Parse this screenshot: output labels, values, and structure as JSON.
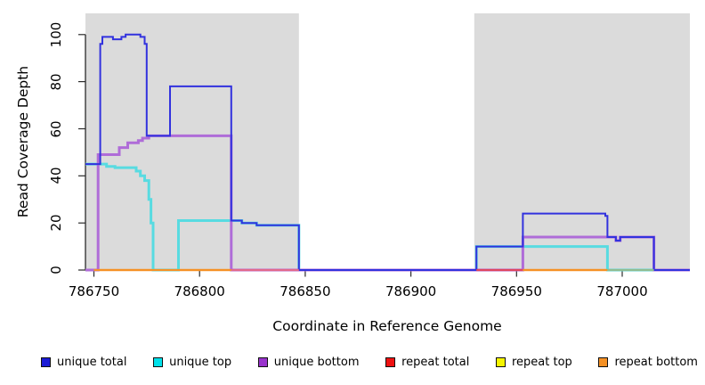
{
  "chart_data": {
    "type": "line",
    "title": "",
    "xlabel": "Coordinate in Reference Genome",
    "ylabel": "Read Coverage Depth",
    "xlim": [
      786746,
      787032
    ],
    "ylim": [
      0,
      109
    ],
    "x_ticks": [
      786750,
      786800,
      786850,
      786900,
      786950,
      787000
    ],
    "y_ticks": [
      0,
      20,
      40,
      60,
      80,
      100
    ],
    "grid": false,
    "legend_position": "bottom",
    "panel_bg": "#ffffff",
    "shaded_regions": [
      {
        "from": 786746,
        "to": 786847,
        "color": "#dbdbdb"
      },
      {
        "from": 786930,
        "to": 787032,
        "color": "#dbdbdb"
      }
    ],
    "series": [
      {
        "name": "repeat total",
        "color": "#e0455f",
        "width": 2,
        "steps": [
          [
            786750,
            0
          ]
        ]
      },
      {
        "name": "repeat top",
        "color": "#eded2e",
        "width": 2,
        "steps": [
          [
            786750,
            0
          ]
        ]
      },
      {
        "name": "repeat bottom",
        "color": "#f59125",
        "width": 2.2,
        "steps": [
          [
            786750,
            0
          ]
        ]
      },
      {
        "name": "unique top",
        "color": "#58dbe1",
        "width": 3,
        "steps": [
          [
            786746,
            45
          ],
          [
            786756,
            44
          ],
          [
            786760,
            43.5
          ],
          [
            786770,
            42
          ],
          [
            786772,
            40
          ],
          [
            786774,
            38
          ],
          [
            786776,
            30
          ],
          [
            786777,
            20
          ],
          [
            786778,
            0
          ],
          [
            786790,
            21
          ],
          [
            786820,
            20
          ],
          [
            786827,
            19
          ],
          [
            786847,
            0
          ],
          [
            786931,
            10
          ],
          [
            786993,
            0
          ]
        ]
      },
      {
        "name": "unique bottom",
        "color": "#af6cd8",
        "width": 3,
        "steps": [
          [
            786746,
            0
          ],
          [
            786752,
            49
          ],
          [
            786762,
            52
          ],
          [
            786766,
            54
          ],
          [
            786771,
            55
          ],
          [
            786773,
            56
          ],
          [
            786776,
            57
          ],
          [
            786815,
            0
          ],
          [
            786953,
            14
          ],
          [
            786997,
            12.5
          ],
          [
            786999,
            14
          ],
          [
            787015,
            0
          ]
        ]
      },
      {
        "name": "unique total",
        "color": "#3232de",
        "width": 2,
        "steps": [
          [
            786746,
            45
          ],
          [
            786753,
            96
          ],
          [
            786754,
            99
          ],
          [
            786759,
            98
          ],
          [
            786763,
            99
          ],
          [
            786765,
            100
          ],
          [
            786772,
            99
          ],
          [
            786774,
            96
          ],
          [
            786775,
            57
          ],
          [
            786786,
            78
          ],
          [
            786815,
            21
          ],
          [
            786820,
            20
          ],
          [
            786827,
            19
          ],
          [
            786847,
            0
          ],
          [
            786931,
            10
          ],
          [
            786953,
            24
          ],
          [
            786992,
            23
          ],
          [
            786993,
            14
          ],
          [
            786997,
            12.5
          ],
          [
            786999,
            14
          ],
          [
            787015,
            0
          ]
        ]
      }
    ],
    "baseline_segments": [
      {
        "from": 786750,
        "to": 786815,
        "color": "#f59125"
      },
      {
        "from": 786815,
        "to": 786847,
        "color": "#e2688c"
      },
      {
        "from": 786931,
        "to": 786953,
        "color": "#df4560"
      },
      {
        "from": 786953,
        "to": 786993,
        "color": "#f59125"
      },
      {
        "from": 786993,
        "to": 787015,
        "color": "#8fbd92"
      }
    ],
    "legend": [
      {
        "label": "unique total",
        "color": "#1c1cd6"
      },
      {
        "label": "unique top",
        "color": "#00e1ea"
      },
      {
        "label": "unique bottom",
        "color": "#9933cc"
      },
      {
        "label": "repeat total",
        "color": "#ee1111"
      },
      {
        "label": "repeat top",
        "color": "#f5f500"
      },
      {
        "label": "repeat bottom",
        "color": "#f59125"
      }
    ]
  }
}
